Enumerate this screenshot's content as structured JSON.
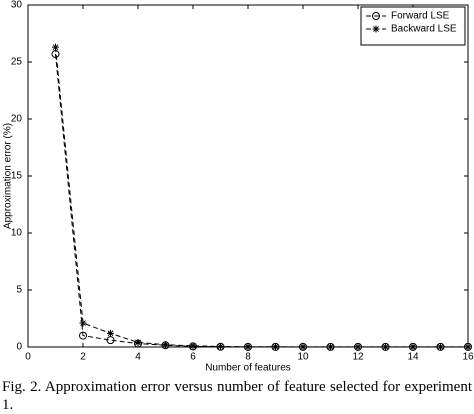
{
  "chart_data": {
    "type": "line",
    "x_label": "Number of features",
    "y_label": "Approximation error (%)",
    "x": [
      1,
      2,
      3,
      4,
      5,
      6,
      7,
      8,
      9,
      10,
      11,
      12,
      13,
      14,
      15,
      16
    ],
    "series": [
      {
        "name": "Forward LSE",
        "color": "#000000",
        "marker": "circle",
        "values": [
          25.7,
          1.0,
          0.6,
          0.3,
          0.15,
          0.05,
          0.02,
          0.01,
          0.01,
          0.01,
          0.01,
          0.01,
          0.01,
          0.01,
          0.01,
          0.01
        ]
      },
      {
        "name": "Backward LSE",
        "color": "#000000",
        "marker": "star",
        "values": [
          26.3,
          2.1,
          1.2,
          0.4,
          0.2,
          0.1,
          0.05,
          0.02,
          0.02,
          0.01,
          0.01,
          0.01,
          0.01,
          0.01,
          0.01,
          0.01
        ]
      }
    ],
    "xlim": [
      0,
      16
    ],
    "xticks": [
      0,
      2,
      4,
      6,
      8,
      10,
      12,
      14,
      16
    ],
    "ylim": [
      0,
      30
    ],
    "yticks": [
      0,
      5,
      10,
      15,
      20,
      25,
      30
    ],
    "legend": "upper right"
  },
  "caption": "Fig. 2. Approximation error versus number of feature selected for experiment 1."
}
